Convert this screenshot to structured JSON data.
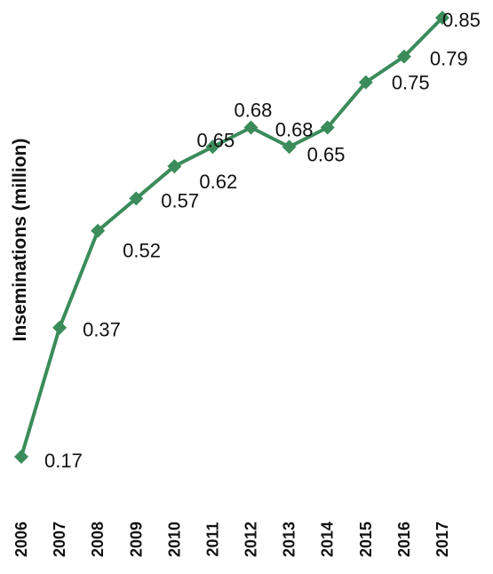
{
  "chart_data": {
    "type": "line",
    "title": "",
    "xlabel": "",
    "ylabel": "Inseminations (million)",
    "ylim": [
      0.17,
      0.85
    ],
    "grid": false,
    "legend": "none",
    "color": "#3b8c5a",
    "categories": [
      "2006",
      "2007",
      "2008",
      "2009",
      "2010",
      "2011",
      "2012",
      "2013",
      "2014",
      "2015",
      "2016",
      "2017"
    ],
    "series": [
      {
        "values": [
          0.17,
          0.37,
          0.52,
          0.57,
          0.62,
          0.65,
          0.68,
          0.65,
          0.68,
          0.75,
          0.79,
          0.85
        ],
        "labels": [
          "0.17",
          "0.37",
          "0.52",
          "0.57",
          "0.62",
          "0.65",
          "0.68",
          "0.65",
          "0.68",
          "0.75",
          "0.79",
          "0.85"
        ]
      }
    ]
  }
}
